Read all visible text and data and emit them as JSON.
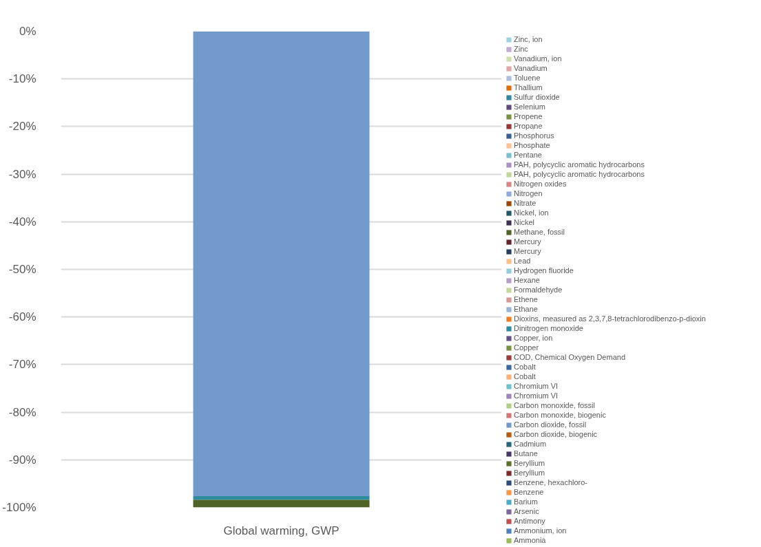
{
  "chart_data": {
    "type": "bar",
    "stacked": true,
    "categories": [
      "Global warming, GWP"
    ],
    "ylim": [
      -100,
      0
    ],
    "yticks": [
      {
        "value": 0,
        "label": "0%"
      },
      {
        "value": -10,
        "label": "-10%"
      },
      {
        "value": -20,
        "label": "-20%"
      },
      {
        "value": -30,
        "label": "-30%"
      },
      {
        "value": -40,
        "label": "-40%"
      },
      {
        "value": -50,
        "label": "-50%"
      },
      {
        "value": -60,
        "label": "-60%"
      },
      {
        "value": -70,
        "label": "-70%"
      },
      {
        "value": -80,
        "label": "-80%"
      },
      {
        "value": -90,
        "label": "-90%"
      },
      {
        "value": -100,
        "label": "-100%"
      }
    ],
    "grid": "y",
    "legend": "right",
    "series": [
      {
        "name": "Ammonia",
        "color": "#9bbb59",
        "values": [
          0
        ]
      },
      {
        "name": "Ammonium, ion",
        "color": "#4f81bd",
        "values": [
          0
        ]
      },
      {
        "name": "Antimony",
        "color": "#c0504d",
        "values": [
          0
        ]
      },
      {
        "name": "Arsenic",
        "color": "#8064a2",
        "values": [
          0
        ]
      },
      {
        "name": "Barium",
        "color": "#4bacc6",
        "values": [
          0
        ]
      },
      {
        "name": "Benzene",
        "color": "#f79646",
        "values": [
          0
        ]
      },
      {
        "name": "Benzene, hexachloro-",
        "color": "#2c4d7a",
        "values": [
          0
        ]
      },
      {
        "name": "Beryllium",
        "color": "#7d2b2a",
        "values": [
          0
        ]
      },
      {
        "name": "Beryllium",
        "color": "#5d7229",
        "values": [
          0
        ]
      },
      {
        "name": "Butane",
        "color": "#473964",
        "values": [
          0
        ]
      },
      {
        "name": "Cadmium",
        "color": "#24687a",
        "values": [
          0
        ]
      },
      {
        "name": "Carbon dioxide, biogenic",
        "color": "#b7590f",
        "values": [
          0
        ]
      },
      {
        "name": "Carbon dioxide, fossil",
        "color": "#729aca",
        "values": [
          -97.6
        ]
      },
      {
        "name": "Carbon monoxide, biogenic",
        "color": "#d27575",
        "values": [
          0
        ]
      },
      {
        "name": "Carbon monoxide, fossil",
        "color": "#b2cf85",
        "values": [
          0
        ]
      },
      {
        "name": "Chromium VI",
        "color": "#9c85be",
        "values": [
          0
        ]
      },
      {
        "name": "Chromium VI",
        "color": "#6fc0d0",
        "values": [
          0
        ]
      },
      {
        "name": "Cobalt",
        "color": "#fab07a",
        "values": [
          0
        ]
      },
      {
        "name": "Cobalt",
        "color": "#3a67a0",
        "values": [
          0
        ]
      },
      {
        "name": "COD, Chemical Oxygen Demand",
        "color": "#9b3a3a",
        "values": [
          0
        ]
      },
      {
        "name": "Copper",
        "color": "#77933c",
        "values": [
          0
        ]
      },
      {
        "name": "Copper, ion",
        "color": "#66508a",
        "values": [
          0
        ]
      },
      {
        "name": "Dinitrogen monoxide",
        "color": "#2e8ca0",
        "values": [
          -0.8
        ]
      },
      {
        "name": "Dioxins, measured as 2,3,7,8-tetrachlorodibenzo-p-dioxin",
        "color": "#f47b20",
        "values": [
          0
        ]
      },
      {
        "name": "Ethane",
        "color": "#95b3d7",
        "values": [
          0
        ]
      },
      {
        "name": "Ethene",
        "color": "#d99694",
        "values": [
          0
        ]
      },
      {
        "name": "Formaldehyde",
        "color": "#c3d69b",
        "values": [
          0
        ]
      },
      {
        "name": "Hexane",
        "color": "#b3a2c7",
        "values": [
          0
        ]
      },
      {
        "name": "Hydrogen fluoride",
        "color": "#92cddc",
        "values": [
          0
        ]
      },
      {
        "name": "Lead",
        "color": "#f9c08d",
        "values": [
          0
        ]
      },
      {
        "name": "Mercury",
        "color": "#243f60",
        "values": [
          0
        ]
      },
      {
        "name": "Mercury",
        "color": "#632523",
        "values": [
          0
        ]
      },
      {
        "name": "Methane, fossil",
        "color": "#4f6228",
        "values": [
          -1.6
        ]
      },
      {
        "name": "Nickel",
        "color": "#3f3151",
        "values": [
          0
        ]
      },
      {
        "name": "Nickel, ion",
        "color": "#215968",
        "values": [
          0
        ]
      },
      {
        "name": "Nitrate",
        "color": "#984807",
        "values": [
          0
        ]
      },
      {
        "name": "Nitrogen",
        "color": "#8eabd9",
        "values": [
          0
        ]
      },
      {
        "name": "Nitrogen oxides",
        "color": "#d88685",
        "values": [
          0
        ]
      },
      {
        "name": "PAH, polycyclic aromatic hydrocarbons",
        "color": "#c0d797",
        "values": [
          0
        ]
      },
      {
        "name": "PAH, polycyclic aromatic hydrocarbons",
        "color": "#a994c6",
        "values": [
          0
        ]
      },
      {
        "name": "Pentane",
        "color": "#78c0d0",
        "values": [
          0
        ]
      },
      {
        "name": "Phosphate",
        "color": "#fac090",
        "values": [
          0
        ]
      },
      {
        "name": "Phosphorus",
        "color": "#376092",
        "values": [
          0
        ]
      },
      {
        "name": "Propane",
        "color": "#953735",
        "values": [
          0
        ]
      },
      {
        "name": "Propene",
        "color": "#77933c",
        "values": [
          0
        ]
      },
      {
        "name": "Selenium",
        "color": "#604a7b",
        "values": [
          0
        ]
      },
      {
        "name": "Sulfur dioxide",
        "color": "#31859c",
        "values": [
          0
        ]
      },
      {
        "name": "Thallium",
        "color": "#e46c0a",
        "values": [
          0
        ]
      },
      {
        "name": "Toluene",
        "color": "#a8bfe0",
        "values": [
          0
        ]
      },
      {
        "name": "Vanadium",
        "color": "#e1a7a6",
        "values": [
          0
        ]
      },
      {
        "name": "Vanadium, ion",
        "color": "#cde0ae",
        "values": [
          0
        ]
      },
      {
        "name": "Zinc",
        "color": "#bcaed1",
        "values": [
          0
        ]
      },
      {
        "name": "Zinc, ion",
        "color": "#9fd3df",
        "values": [
          0
        ]
      }
    ]
  }
}
